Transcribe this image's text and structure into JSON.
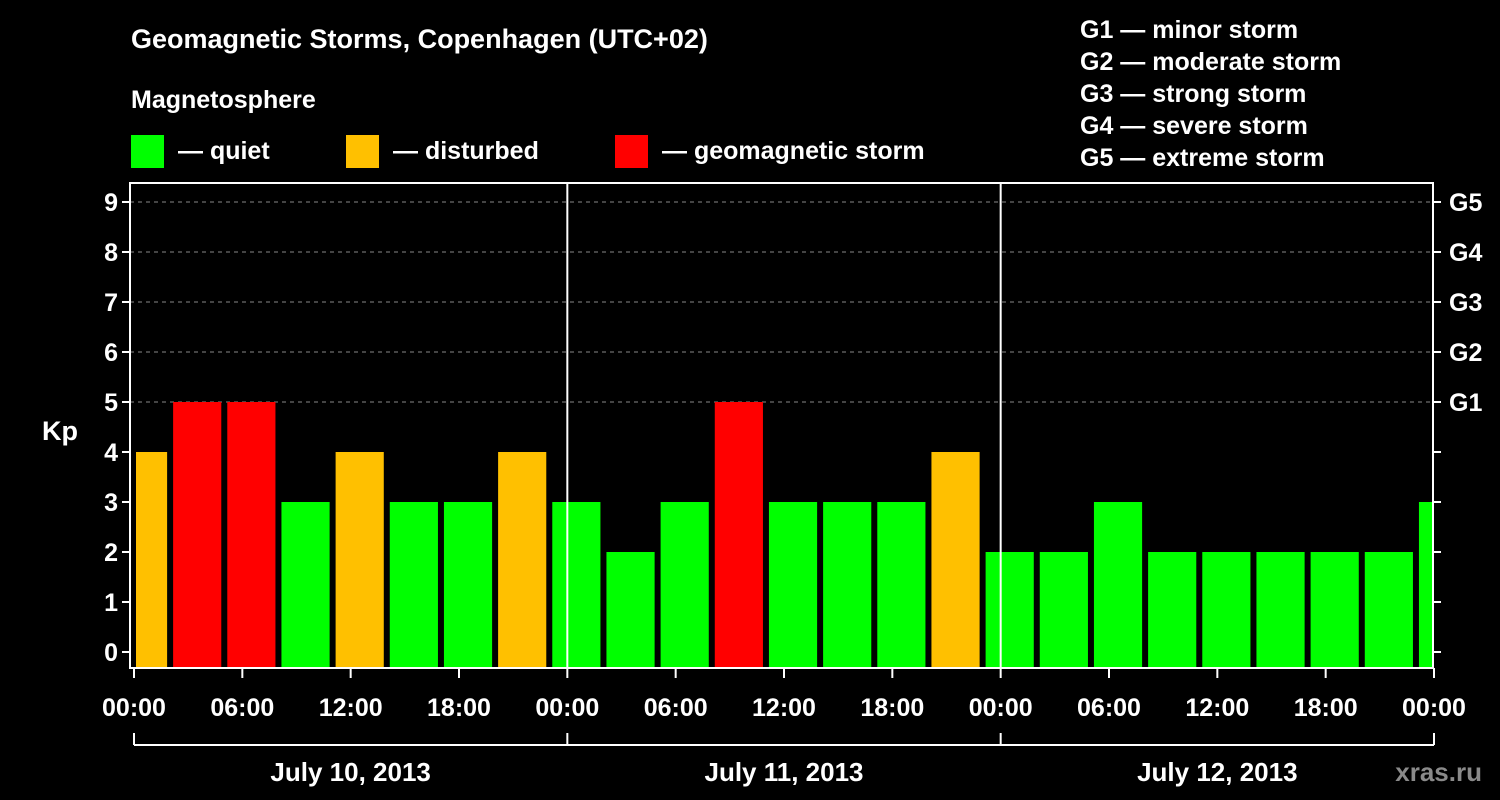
{
  "title": "Geomagnetic Storms, Copenhagen (UTC+02)",
  "subtitle": "Magnetosphere",
  "legend": [
    {
      "label": "— quiet",
      "color": "#00ff00"
    },
    {
      "label": "— disturbed",
      "color": "#ffc000"
    },
    {
      "label": "— geomagnetic storm",
      "color": "#ff0000"
    }
  ],
  "storm_scale": [
    "G1 — minor storm",
    "G2 — moderate storm",
    "G3 — strong storm",
    "G4 — severe storm",
    "G5 — extreme storm"
  ],
  "watermark": "xras.ru",
  "chart_data": {
    "type": "bar",
    "ylabel": "Kp",
    "ylim": [
      0,
      9
    ],
    "yticks": [
      0,
      1,
      2,
      3,
      4,
      5,
      6,
      7,
      8,
      9
    ],
    "right_axis_labels": [
      {
        "kp": 5,
        "label": "G1"
      },
      {
        "kp": 6,
        "label": "G2"
      },
      {
        "kp": 7,
        "label": "G3"
      },
      {
        "kp": 8,
        "label": "G4"
      },
      {
        "kp": 9,
        "label": "G5"
      }
    ],
    "xlim_hours": [
      0,
      72
    ],
    "xtick_labels": [
      "00:00",
      "06:00",
      "12:00",
      "18:00",
      "00:00",
      "06:00",
      "12:00",
      "18:00",
      "00:00",
      "06:00",
      "12:00",
      "18:00",
      "00:00"
    ],
    "day_labels": [
      "July 10, 2013",
      "July 11, 2013",
      "July 12, 2013"
    ],
    "colors": {
      "quiet": "#00ff00",
      "disturbed": "#ffc000",
      "storm": "#ff0000"
    },
    "bars": [
      {
        "start": 0,
        "end": 2,
        "kp": 4,
        "level": "disturbed"
      },
      {
        "start": 2,
        "end": 5,
        "kp": 5,
        "level": "storm"
      },
      {
        "start": 5,
        "end": 8,
        "kp": 5,
        "level": "storm"
      },
      {
        "start": 8,
        "end": 11,
        "kp": 3,
        "level": "quiet"
      },
      {
        "start": 11,
        "end": 14,
        "kp": 4,
        "level": "disturbed"
      },
      {
        "start": 14,
        "end": 17,
        "kp": 3,
        "level": "quiet"
      },
      {
        "start": 17,
        "end": 20,
        "kp": 3,
        "level": "quiet"
      },
      {
        "start": 20,
        "end": 23,
        "kp": 4,
        "level": "disturbed"
      },
      {
        "start": 23,
        "end": 26,
        "kp": 3,
        "level": "quiet"
      },
      {
        "start": 26,
        "end": 29,
        "kp": 2,
        "level": "quiet"
      },
      {
        "start": 29,
        "end": 32,
        "kp": 3,
        "level": "quiet"
      },
      {
        "start": 32,
        "end": 35,
        "kp": 5,
        "level": "storm"
      },
      {
        "start": 35,
        "end": 38,
        "kp": 3,
        "level": "quiet"
      },
      {
        "start": 38,
        "end": 41,
        "kp": 3,
        "level": "quiet"
      },
      {
        "start": 41,
        "end": 44,
        "kp": 3,
        "level": "quiet"
      },
      {
        "start": 44,
        "end": 47,
        "kp": 4,
        "level": "disturbed"
      },
      {
        "start": 47,
        "end": 50,
        "kp": 2,
        "level": "quiet"
      },
      {
        "start": 50,
        "end": 53,
        "kp": 2,
        "level": "quiet"
      },
      {
        "start": 53,
        "end": 56,
        "kp": 3,
        "level": "quiet"
      },
      {
        "start": 56,
        "end": 59,
        "kp": 2,
        "level": "quiet"
      },
      {
        "start": 59,
        "end": 62,
        "kp": 2,
        "level": "quiet"
      },
      {
        "start": 62,
        "end": 65,
        "kp": 2,
        "level": "quiet"
      },
      {
        "start": 65,
        "end": 68,
        "kp": 2,
        "level": "quiet"
      },
      {
        "start": 68,
        "end": 71,
        "kp": 2,
        "level": "quiet"
      },
      {
        "start": 71,
        "end": 72,
        "kp": 3,
        "level": "quiet"
      }
    ]
  }
}
